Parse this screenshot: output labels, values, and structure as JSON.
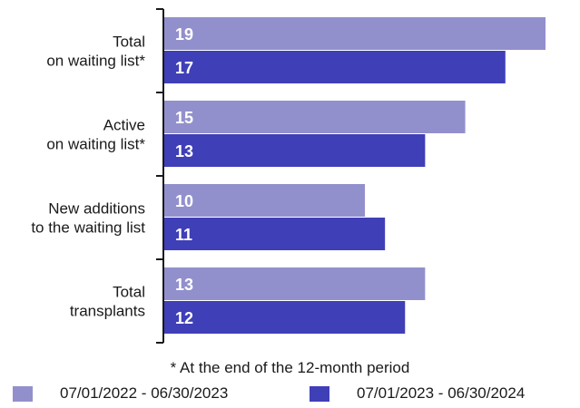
{
  "chart_data": {
    "type": "bar",
    "orientation": "horizontal",
    "categories": [
      [
        "Total",
        "on waiting list*"
      ],
      [
        "Active",
        "on waiting list*"
      ],
      [
        "New additions",
        "to the waiting list"
      ],
      [
        "Total",
        "transplants"
      ]
    ],
    "series": [
      {
        "name": "07/01/2022 - 06/30/2023",
        "color": "#9290cc",
        "values": [
          19,
          15,
          10,
          13
        ]
      },
      {
        "name": "07/01/2023 - 06/30/2024",
        "color": "#3f3fb8",
        "values": [
          17,
          13,
          11,
          12
        ]
      }
    ],
    "xlim": [
      0,
      19.5
    ],
    "data_labels": true,
    "grid": false,
    "legend_position": "bottom",
    "footnote": "* At the end of the 12-month period"
  }
}
